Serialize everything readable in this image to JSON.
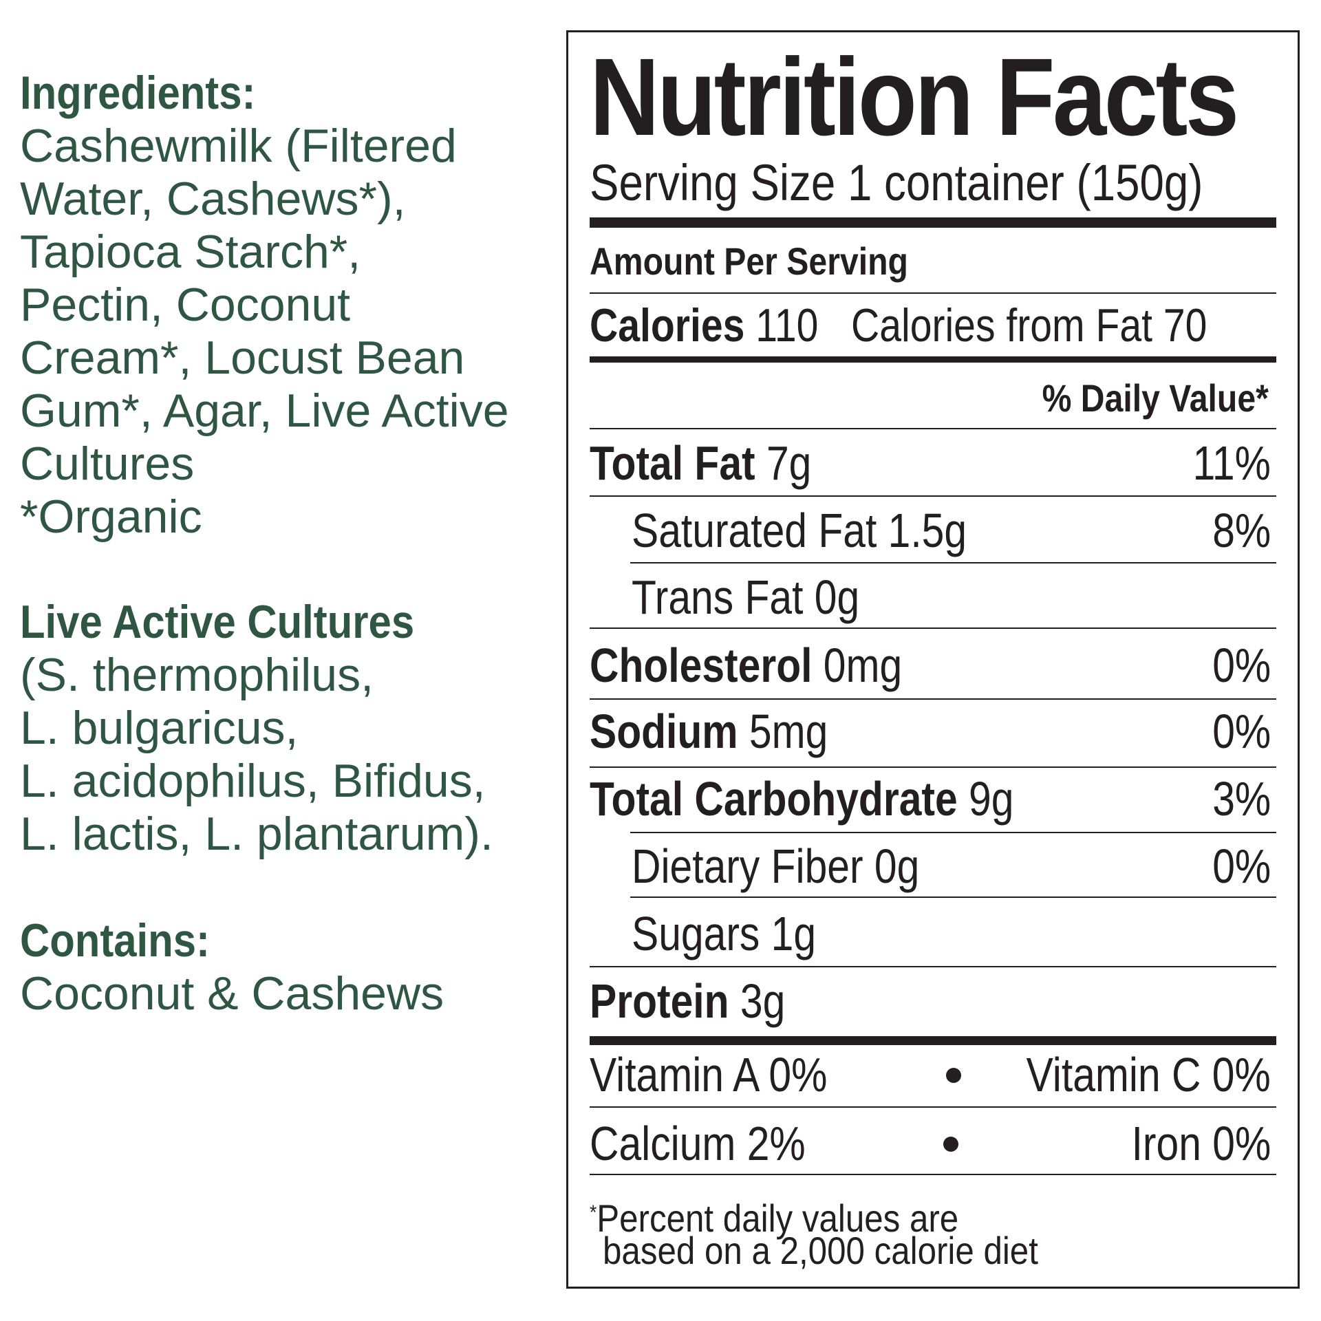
{
  "colors": {
    "ingredients_text": "#2f5643",
    "label_ink": "#231f20"
  },
  "ingredients": {
    "heading": "Ingredients:",
    "lines": [
      "Cashewmilk (Filtered",
      "Water, Cashews*),",
      "Tapioca Starch*,",
      "Pectin, Coconut",
      "Cream*, Locust Bean",
      "Gum*, Agar, Live Active",
      "Cultures",
      "*Organic"
    ]
  },
  "cultures": {
    "heading": "Live Active Cultures",
    "lines": [
      "(S. thermophilus,",
      "L. bulgaricus,",
      "L. acidophilus, Bifidus,",
      "L. lactis, L. plantarum)."
    ]
  },
  "contains": {
    "heading": "Contains:",
    "lines": [
      "Coconut & Cashews"
    ]
  },
  "nutrition": {
    "title": "Nutrition Facts",
    "serving_size": "Serving Size 1 container (150g)",
    "amount_per_serving": "Amount Per Serving",
    "calories_label": "Calories",
    "calories_value": "110",
    "calories_fat": "Calories from Fat 70",
    "daily_value_header": "% Daily Value*",
    "rows": [
      {
        "label": "Total Fat",
        "amount": "7g",
        "dv": "11%"
      },
      {
        "label": "Saturated Fat",
        "amount": "1.5g",
        "dv": "8%"
      },
      {
        "label": "Trans Fat",
        "amount": "0g",
        "dv": ""
      },
      {
        "label": "Cholesterol",
        "amount": "0mg",
        "dv": "0%"
      },
      {
        "label": "Sodium",
        "amount": "5mg",
        "dv": "0%"
      },
      {
        "label": "Total Carbohydrate",
        "amount": "9g",
        "dv": "3%"
      },
      {
        "label": "Dietary Fiber",
        "amount": "0g",
        "dv": "0%"
      },
      {
        "label": "Sugars",
        "amount": "1g",
        "dv": ""
      },
      {
        "label": "Protein",
        "amount": "3g",
        "dv": ""
      }
    ],
    "vitamins": [
      {
        "left": "Vitamin A 0%",
        "right": "Vitamin C 0%"
      },
      {
        "left": "Calcium 2%",
        "right": "Iron 0%"
      }
    ],
    "footnote_mark": "*",
    "footnote_lines": [
      "Percent daily values are",
      "based on a 2,000 calorie diet"
    ]
  }
}
